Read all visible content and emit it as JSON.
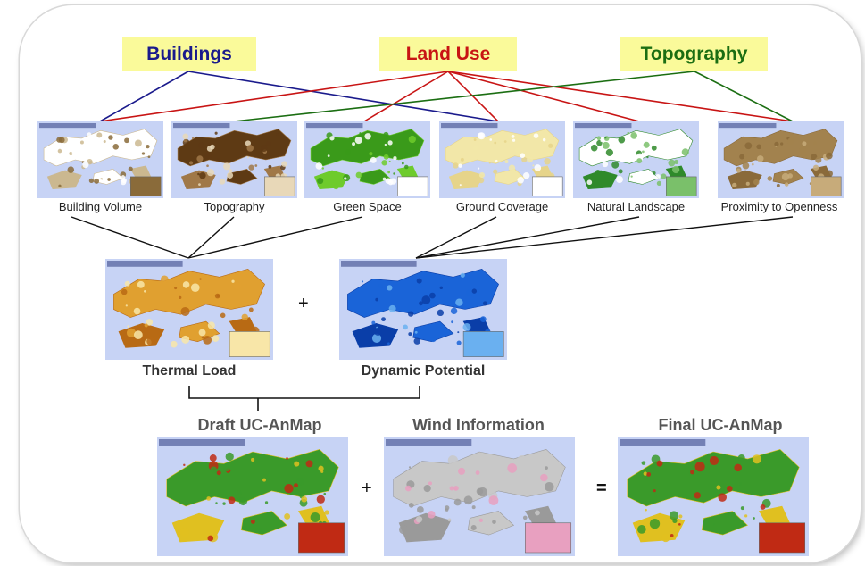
{
  "categories": {
    "buildings": {
      "label": "Buildings",
      "color": "#1a1a8c"
    },
    "land_use": {
      "label": "Land Use",
      "color": "#c81414"
    },
    "topography": {
      "label": "Topography",
      "color": "#1b6e12"
    }
  },
  "layer_maps": [
    {
      "label": "Building Volume",
      "palette": [
        "#ffffff",
        "#cbb890",
        "#8a6b3a"
      ]
    },
    {
      "label": "Topography",
      "palette": [
        "#5e3a14",
        "#a07848",
        "#e8d8b8"
      ]
    },
    {
      "label": "Green Space",
      "palette": [
        "#3a9a1a",
        "#6ecb2c",
        "#ffffff"
      ]
    },
    {
      "label": "Ground Coverage",
      "palette": [
        "#f2e7a8",
        "#e6d48a",
        "#ffffff"
      ]
    },
    {
      "label": "Natural Landscape",
      "palette": [
        "#ffffff",
        "#2f8a2a",
        "#7ac06a"
      ]
    },
    {
      "label": "Proximity to Openness",
      "palette": [
        "#a2824e",
        "#8a6a3a",
        "#c7ab7a"
      ]
    }
  ],
  "intermediate_maps": [
    {
      "label": "Thermal Load",
      "palette": [
        "#e0a030",
        "#b86a14",
        "#f8e6a8"
      ]
    },
    {
      "label": "Dynamic Potential",
      "palette": [
        "#1a64d8",
        "#0a3ea8",
        "#6ab0f0"
      ]
    }
  ],
  "final_row": [
    {
      "label": "Draft UC-AnMap",
      "palette": [
        "#3a9a2a",
        "#e0c020",
        "#c02a14"
      ]
    },
    {
      "label": "Wind Information",
      "palette": [
        "#c8c8c8",
        "#9a9a9a",
        "#e8a0c0"
      ]
    },
    {
      "label": "Final UC-AnMap",
      "palette": [
        "#3a9a2a",
        "#e0c020",
        "#c02a14"
      ]
    }
  ],
  "operators": {
    "plus_mid": "+",
    "plus_bottom": "+",
    "equals": "="
  },
  "colors": {
    "map_sea": "#c7d3f5",
    "bracket": "#111111"
  }
}
